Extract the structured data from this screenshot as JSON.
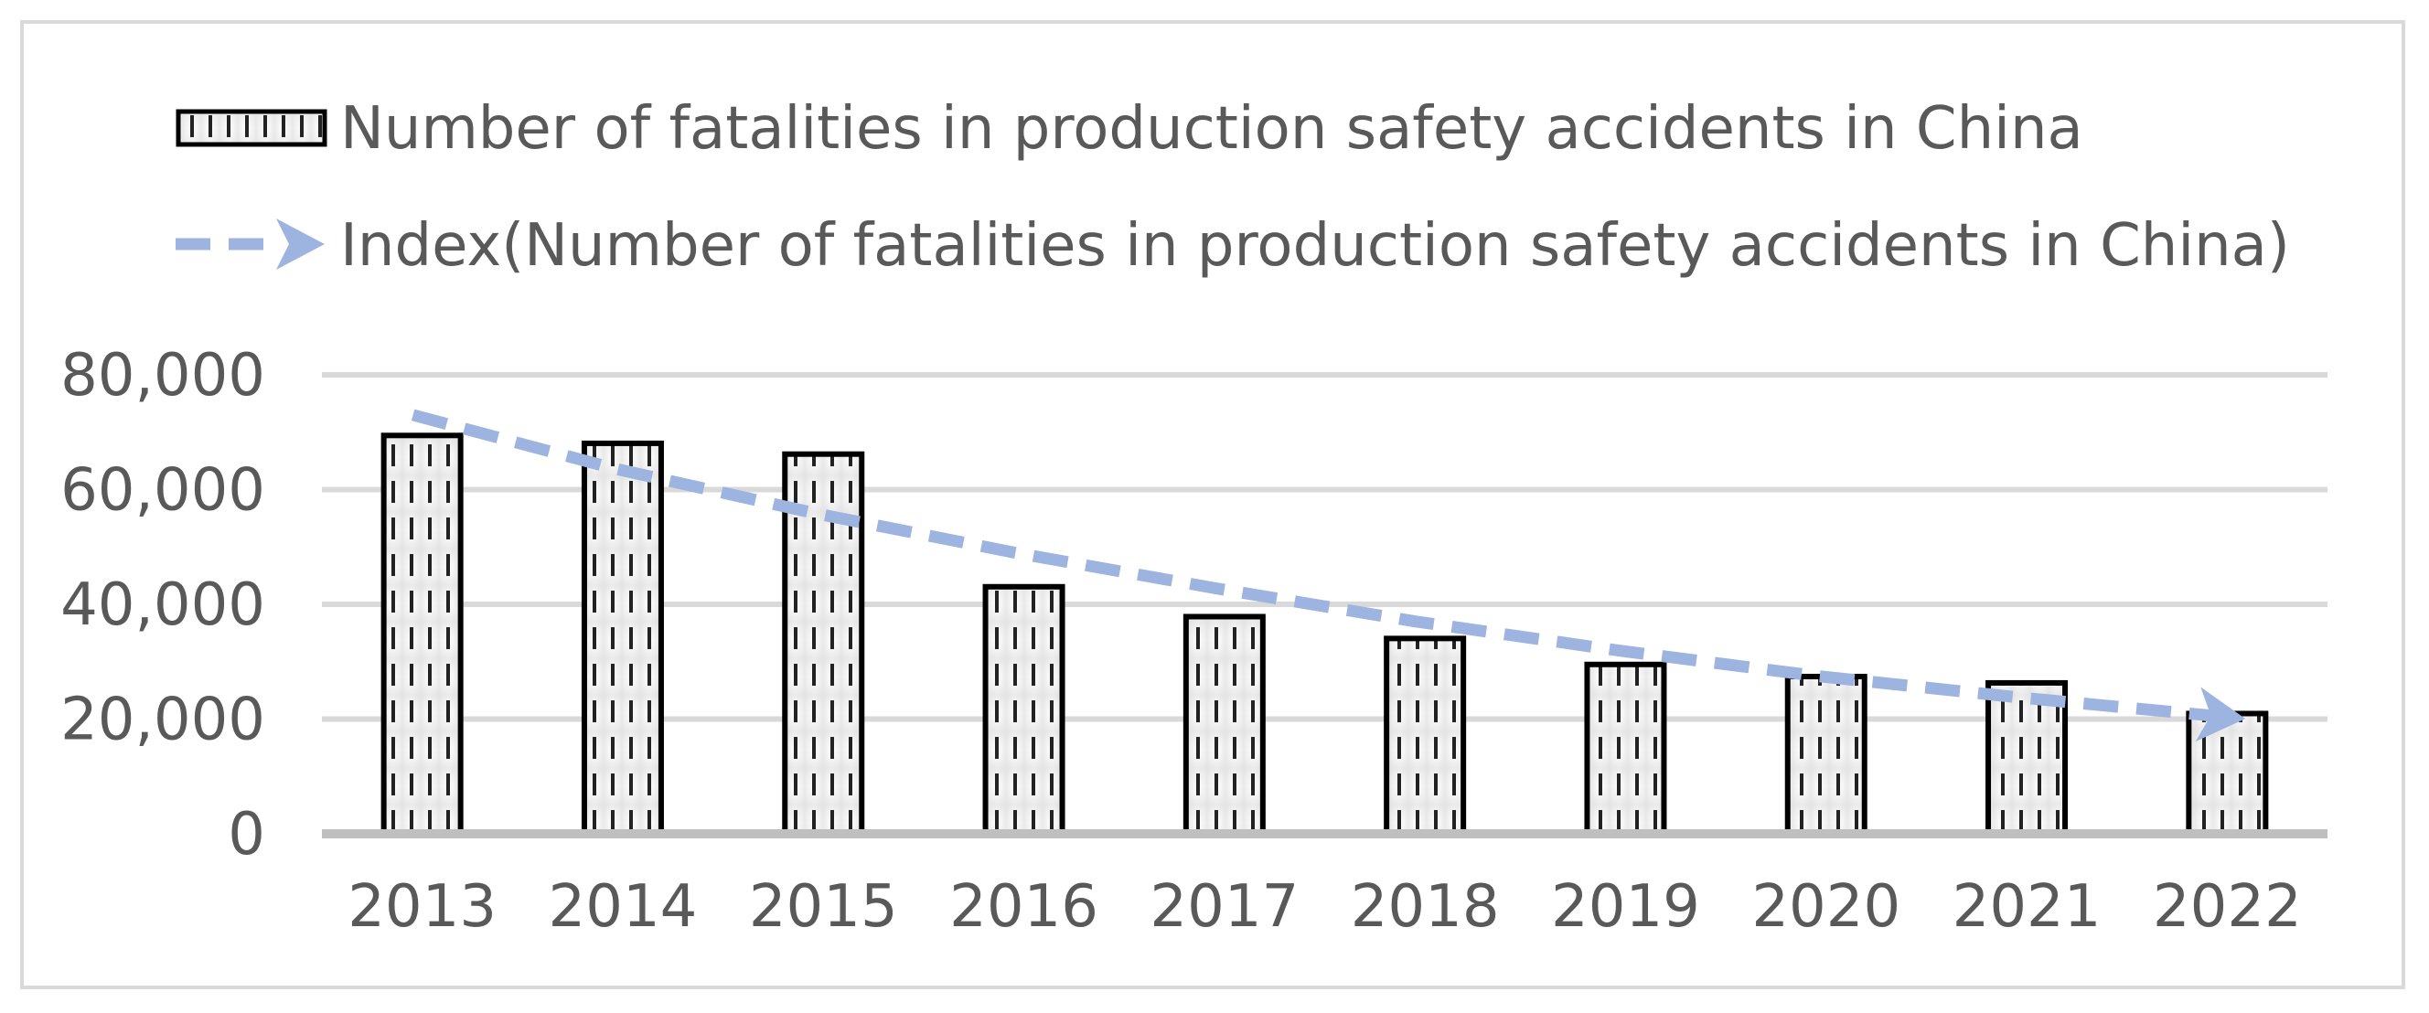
{
  "chart_data": {
    "type": "bar",
    "title": "",
    "xlabel": "",
    "ylabel": "",
    "categories": [
      "2013",
      "2014",
      "2015",
      "2016",
      "2017",
      "2018",
      "2019",
      "2020",
      "2021",
      "2022"
    ],
    "series": [
      {
        "name": "Number of fatalities in production safety accidents in China",
        "type": "bar",
        "values": [
          69434,
          68061,
          66182,
          43062,
          37852,
          34046,
          29519,
          27412,
          26307,
          20963
        ]
      },
      {
        "name": "Index(Number of fatalities in production safety accidents in China)",
        "type": "trendline",
        "values": [
          73000,
          63700,
          55900,
          49000,
          42800,
          37000,
          32000,
          27500,
          23800,
          20500
        ]
      }
    ],
    "ylim": [
      0,
      80000
    ],
    "yticks": [
      0,
      20000,
      40000,
      60000,
      80000
    ],
    "ytick_labels": [
      "0",
      "20,000",
      "40,000",
      "60,000",
      "80,000"
    ],
    "grid": true,
    "legend_position": "top-left",
    "colors": {
      "bar_fill": "#efefef",
      "bar_stroke": "#000000",
      "trend": "#9db3e0",
      "grid": "#d9d9d9",
      "axis": "#bfbfbf",
      "text": "#595959"
    }
  }
}
